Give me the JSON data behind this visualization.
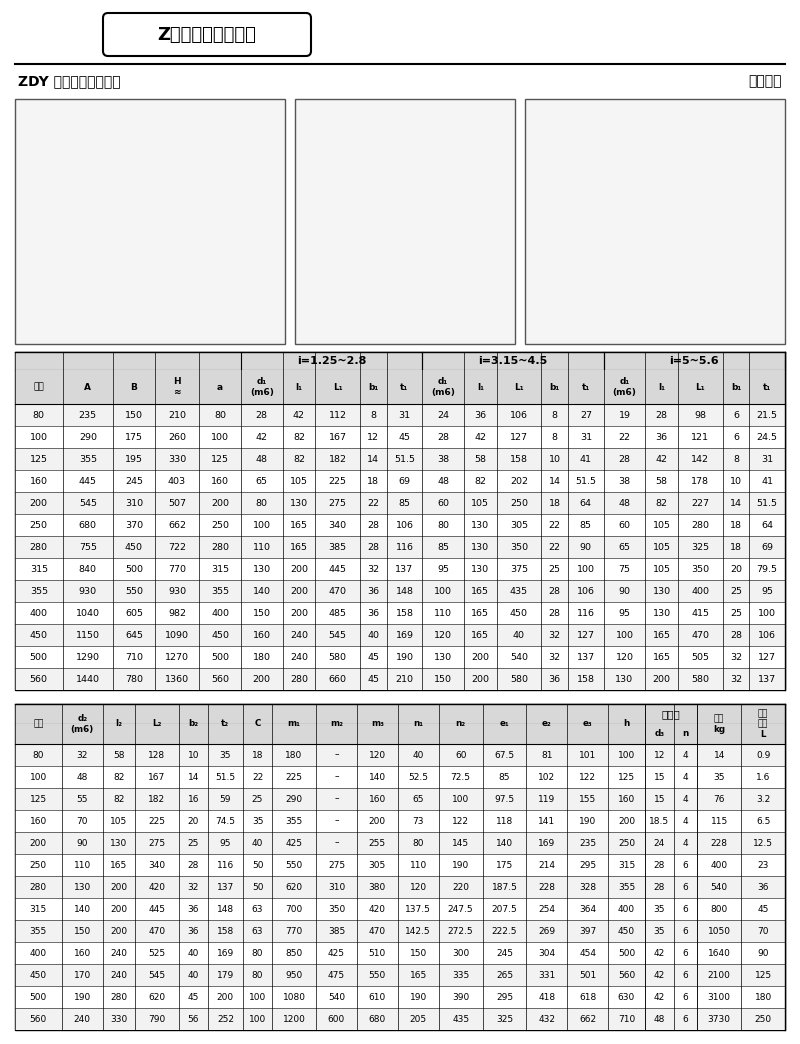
{
  "title": "Z系列外形安装尺寸",
  "subtitle_left": "ZDY 型圓柱齒輪減速机",
  "subtitle_right": "装配形式",
  "header_bg": "#d8d8d8",
  "row_alt_color": "#f2f2f2",
  "bg_color": "#ffffff",
  "table1_data": [
    [
      80,
      235,
      150,
      210,
      80,
      28,
      42,
      112,
      8,
      31,
      24,
      36,
      106,
      8,
      27,
      19,
      28,
      98,
      6,
      21.5
    ],
    [
      100,
      290,
      175,
      260,
      100,
      42,
      82,
      167,
      12,
      45,
      28,
      42,
      127,
      8,
      31,
      22,
      36,
      121,
      6,
      24.5
    ],
    [
      125,
      355,
      195,
      330,
      125,
      48,
      82,
      182,
      14,
      51.5,
      38,
      58,
      158,
      10,
      41,
      28,
      42,
      142,
      8,
      31
    ],
    [
      160,
      445,
      245,
      403,
      160,
      65,
      105,
      225,
      18,
      69,
      48,
      82,
      202,
      14,
      51.5,
      38,
      58,
      178,
      10,
      41
    ],
    [
      200,
      545,
      310,
      507,
      200,
      80,
      130,
      275,
      22,
      85,
      60,
      105,
      250,
      18,
      64,
      48,
      82,
      227,
      14,
      51.5
    ],
    [
      250,
      680,
      370,
      662,
      250,
      100,
      165,
      340,
      28,
      106,
      80,
      130,
      305,
      22,
      85,
      60,
      105,
      280,
      18,
      64
    ],
    [
      280,
      755,
      450,
      722,
      280,
      110,
      165,
      385,
      28,
      116,
      85,
      130,
      350,
      22,
      90,
      65,
      105,
      325,
      18,
      69
    ],
    [
      315,
      840,
      500,
      770,
      315,
      130,
      200,
      445,
      32,
      137,
      95,
      130,
      375,
      25,
      100,
      75,
      105,
      350,
      20,
      79.5
    ],
    [
      355,
      930,
      550,
      930,
      355,
      140,
      200,
      470,
      36,
      148,
      100,
      165,
      435,
      28,
      106,
      90,
      130,
      400,
      25,
      95
    ],
    [
      400,
      1040,
      605,
      982,
      400,
      150,
      200,
      485,
      36,
      158,
      110,
      165,
      450,
      28,
      116,
      95,
      130,
      415,
      25,
      100
    ],
    [
      450,
      1150,
      645,
      1090,
      450,
      160,
      240,
      545,
      40,
      169,
      120,
      165,
      40,
      32,
      127,
      100,
      165,
      470,
      28,
      106
    ],
    [
      500,
      1290,
      710,
      1270,
      500,
      180,
      240,
      580,
      45,
      190,
      130,
      200,
      540,
      32,
      137,
      120,
      165,
      505,
      32,
      127
    ],
    [
      560,
      1440,
      780,
      1360,
      560,
      200,
      280,
      660,
      45,
      210,
      150,
      200,
      580,
      36,
      158,
      130,
      200,
      580,
      32,
      137
    ]
  ],
  "table2_data": [
    [
      80,
      32,
      58,
      128,
      10,
      35,
      18,
      180,
      "–",
      120,
      40,
      60,
      67.5,
      81,
      101,
      100,
      12,
      4,
      14,
      0.9
    ],
    [
      100,
      48,
      82,
      167,
      14,
      51.5,
      22,
      225,
      "–",
      140,
      52.5,
      72.5,
      85,
      102,
      122,
      125,
      15,
      4,
      35,
      1.6
    ],
    [
      125,
      55,
      82,
      182,
      16,
      59,
      25,
      290,
      "–",
      160,
      65,
      100,
      97.5,
      119,
      155,
      160,
      15,
      4,
      76,
      3.2
    ],
    [
      160,
      70,
      105,
      225,
      20,
      74.5,
      35,
      355,
      "–",
      200,
      73,
      122,
      118,
      141,
      190,
      200,
      18.5,
      4,
      115,
      6.5
    ],
    [
      200,
      90,
      130,
      275,
      25,
      95,
      40,
      425,
      "–",
      255,
      80,
      145,
      140,
      169,
      235,
      250,
      24,
      4,
      228,
      12.5
    ],
    [
      250,
      110,
      165,
      340,
      28,
      116,
      50,
      550,
      275,
      305,
      110,
      190,
      175,
      214,
      295,
      315,
      28,
      6,
      400,
      23
    ],
    [
      280,
      130,
      200,
      420,
      32,
      137,
      50,
      620,
      310,
      380,
      120,
      220,
      187.5,
      228,
      328,
      355,
      28,
      6,
      540,
      36
    ],
    [
      315,
      140,
      200,
      445,
      36,
      148,
      63,
      700,
      350,
      420,
      137.5,
      247.5,
      207.5,
      254,
      364,
      400,
      35,
      6,
      800,
      45
    ],
    [
      355,
      150,
      200,
      470,
      36,
      158,
      63,
      770,
      385,
      470,
      142.5,
      272.5,
      222.5,
      269,
      397,
      450,
      35,
      6,
      1050,
      70
    ],
    [
      400,
      160,
      240,
      525,
      40,
      169,
      80,
      850,
      425,
      510,
      150,
      300,
      245,
      304,
      454,
      500,
      42,
      6,
      1640,
      90
    ],
    [
      450,
      170,
      240,
      545,
      40,
      179,
      80,
      950,
      475,
      550,
      165,
      335,
      265,
      331,
      501,
      560,
      42,
      6,
      2100,
      125
    ],
    [
      500,
      190,
      280,
      620,
      45,
      200,
      100,
      1080,
      540,
      610,
      190,
      390,
      295,
      418,
      618,
      630,
      42,
      6,
      3100,
      180
    ],
    [
      560,
      240,
      330,
      790,
      56,
      252,
      100,
      1200,
      600,
      680,
      205,
      435,
      325,
      432,
      662,
      710,
      48,
      6,
      3730,
      250
    ]
  ]
}
